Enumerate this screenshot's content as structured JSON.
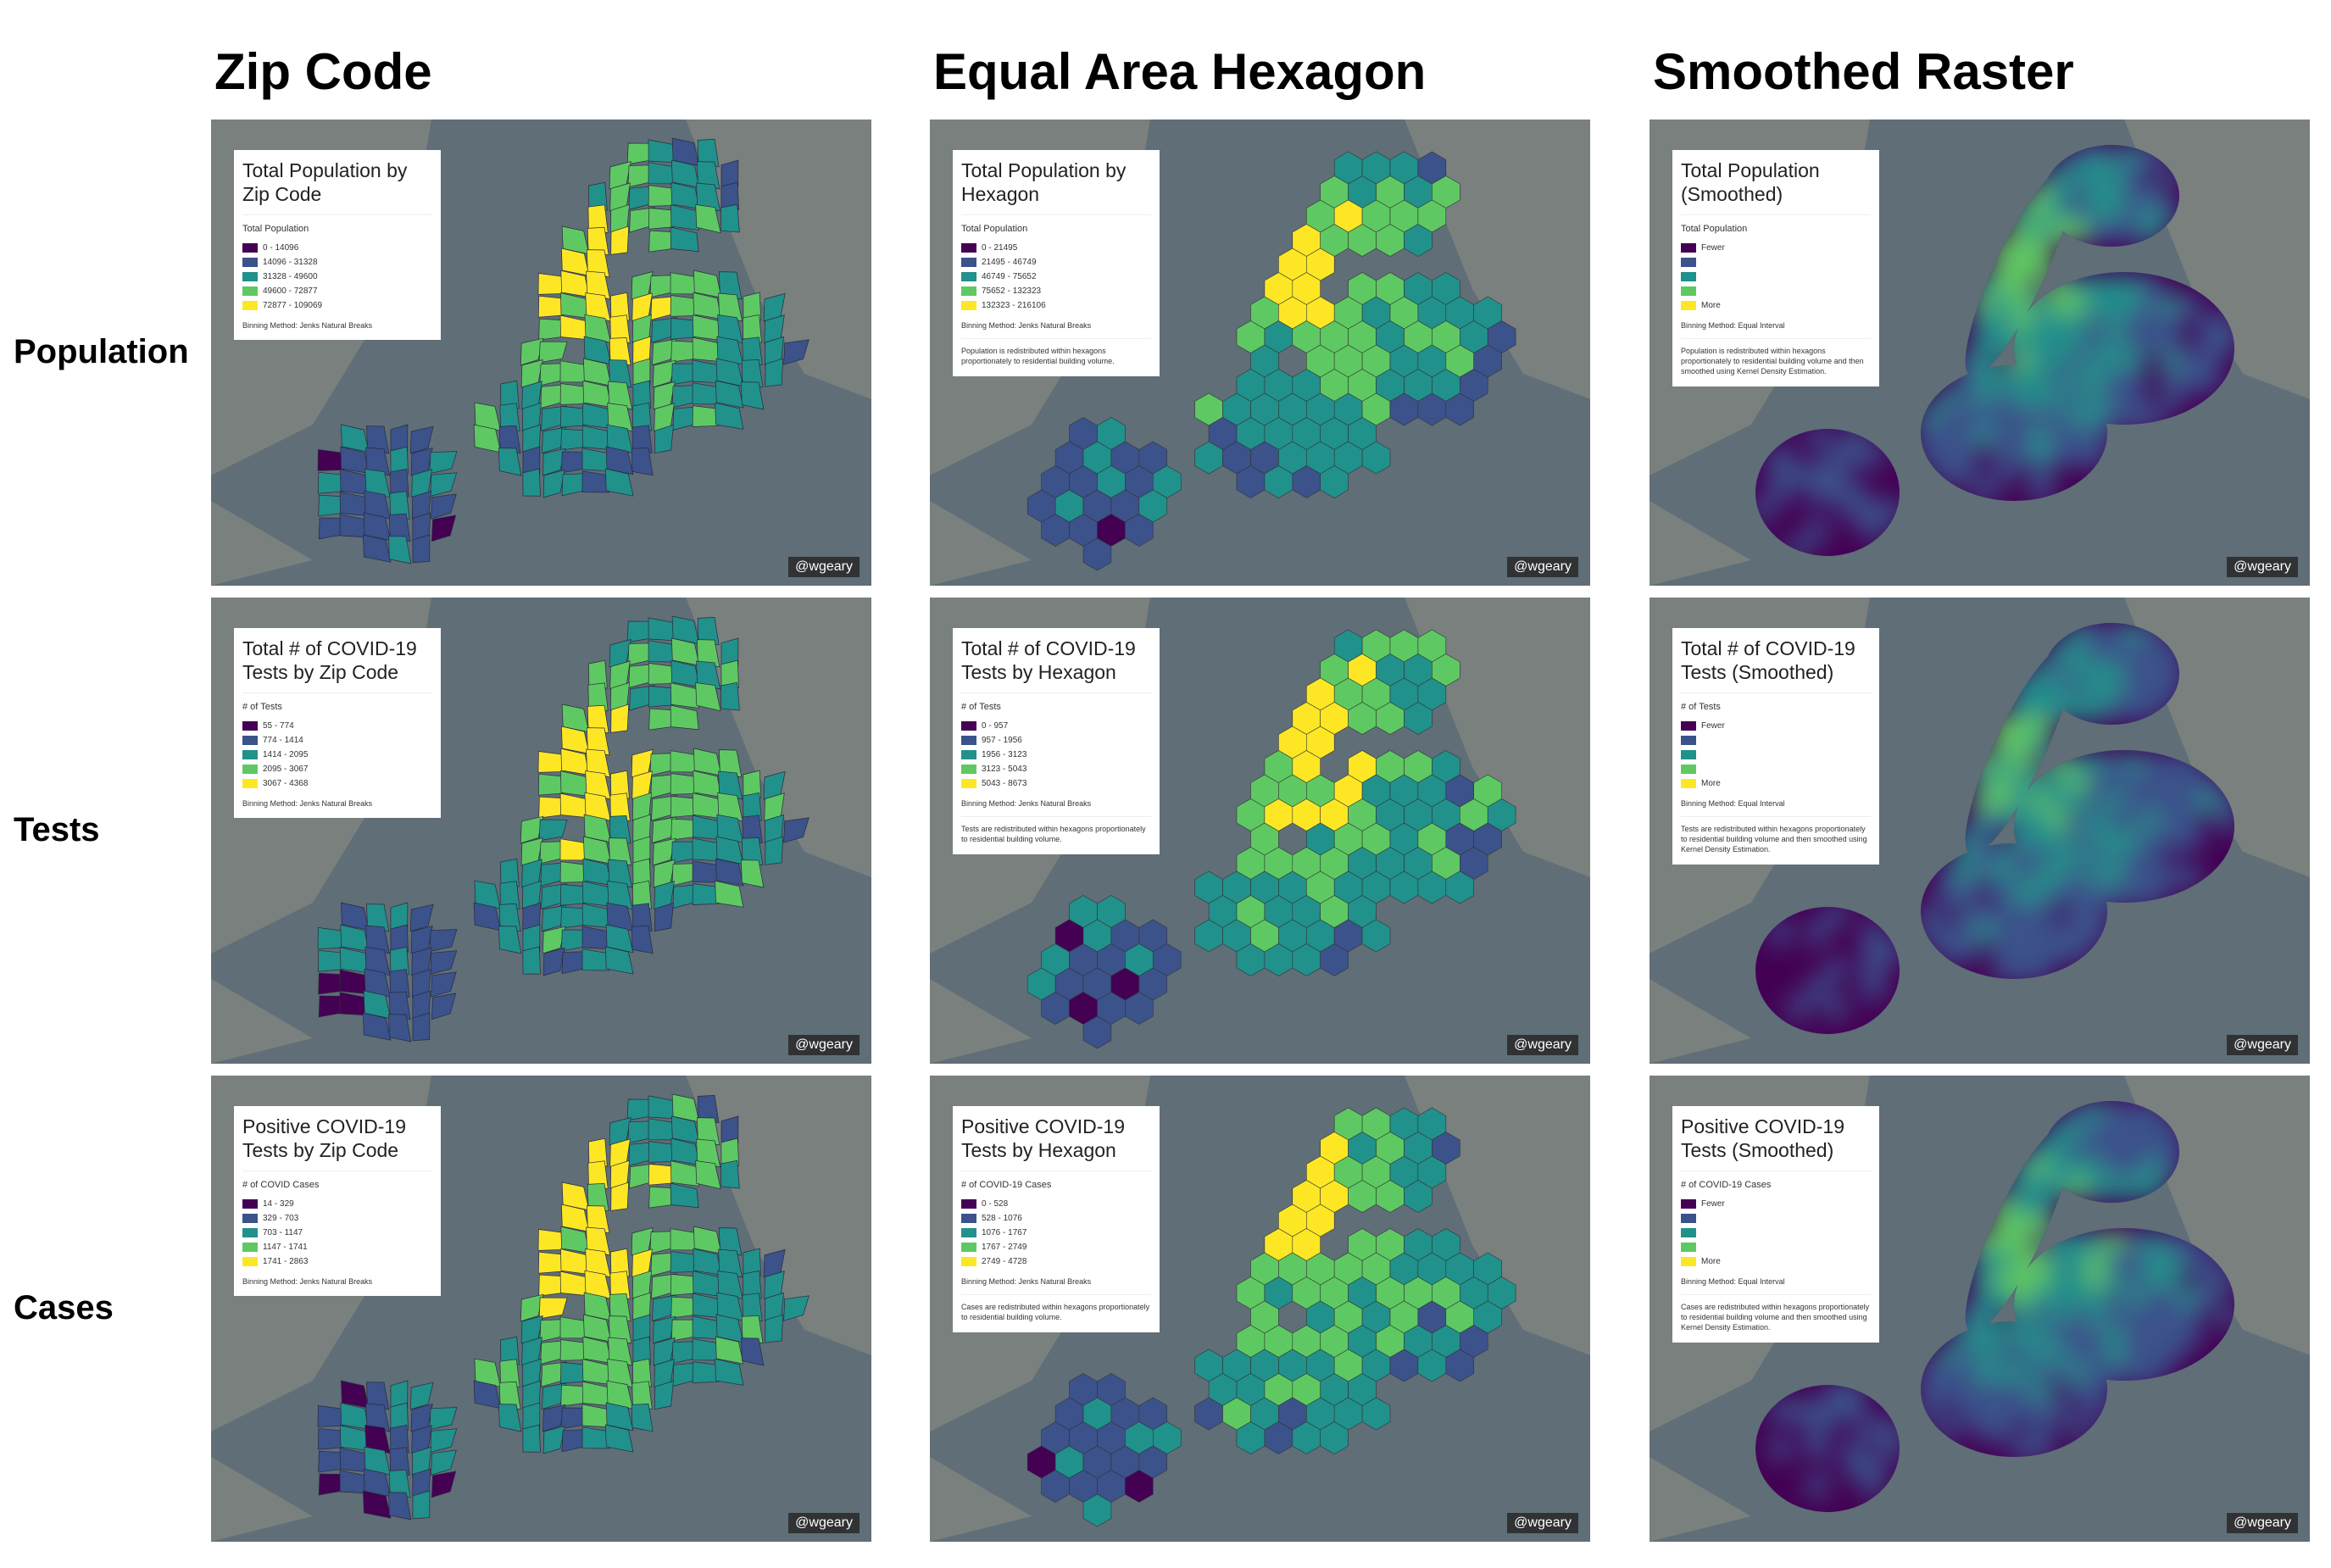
{
  "columns": [
    "Zip Code",
    "Equal Area Hexagon",
    "Smoothed Raster"
  ],
  "rows": [
    "Population",
    "Tests",
    "Cases"
  ],
  "legend_colors": [
    "#440154",
    "#3b528b",
    "#21918c",
    "#5ec962",
    "#fde725"
  ],
  "panels": [
    [
      {
        "style": "zip",
        "title": "Total Population by Zip Code",
        "legend_title": "Total Population",
        "items": [
          "0 - 14096",
          "14096 - 31328",
          "31328 - 49600",
          "49600 - 72877",
          "72877 - 109069"
        ],
        "method": "Binning Method: Jenks Natural Breaks",
        "credit": "@wgeary"
      },
      {
        "style": "hex",
        "title": "Total Population by Hexagon",
        "legend_title": "Total Population",
        "items": [
          "0 - 21495",
          "21495 - 46749",
          "46749 - 75652",
          "75652 - 132323",
          "132323 - 216106"
        ],
        "method": "Binning Method: Jenks Natural Breaks",
        "note": "Population is redistributed within hexagons proportionately to residential building volume.",
        "credit": "@wgeary"
      },
      {
        "style": "smooth",
        "title": "Total Population (Smoothed)",
        "legend_title": "Total Population",
        "items": [
          "Fewer",
          "More"
        ],
        "method": "Binning Method: Equal Interval",
        "note": "Population is redistributed within hexagons proportionately to residential building volume and then smoothed using Kernel Density Estimation.",
        "credit": "@wgeary"
      }
    ],
    [
      {
        "style": "zip",
        "title": "Total # of COVID-19 Tests by Zip Code",
        "legend_title": "# of Tests",
        "items": [
          "55 - 774",
          "774 - 1414",
          "1414 - 2095",
          "2095 - 3067",
          "3067 - 4368"
        ],
        "method": "Binning Method: Jenks Natural Breaks",
        "credit": "@wgeary"
      },
      {
        "style": "hex",
        "title": "Total # of COVID-19 Tests by Hexagon",
        "legend_title": "# of Tests",
        "items": [
          "0 - 957",
          "957 - 1956",
          "1956 - 3123",
          "3123 - 5043",
          "5043 - 8673"
        ],
        "method": "Binning Method: Jenks Natural Breaks",
        "note": "Tests are redistributed within hexagons proportionately to residential building volume.",
        "credit": "@wgeary"
      },
      {
        "style": "smooth",
        "title": "Total # of COVID-19 Tests (Smoothed)",
        "legend_title": "# of Tests",
        "items": [
          "Fewer",
          "More"
        ],
        "method": "Binning Method: Equal Interval",
        "note": "Tests are redistributed within hexagons proportionately to residential building volume and then smoothed using Kernel Density Estimation.",
        "credit": "@wgeary"
      }
    ],
    [
      {
        "style": "zip",
        "title": "Positive COVID-19 Tests by Zip Code",
        "legend_title": "# of COVID Cases",
        "items": [
          "14 - 329",
          "329 - 703",
          "703 - 1147",
          "1147 - 1741",
          "1741 - 2863"
        ],
        "method": "Binning Method: Jenks Natural Breaks",
        "credit": "@wgeary"
      },
      {
        "style": "hex",
        "title": "Positive COVID-19 Tests by Hexagon",
        "legend_title": "# of COVID-19 Cases",
        "items": [
          "0 - 528",
          "528 - 1076",
          "1076 - 1767",
          "1767 - 2749",
          "2749 - 4728"
        ],
        "method": "Binning Method: Jenks Natural Breaks",
        "note": "Cases are redistributed within hexagons proportionately to residential building volume.",
        "credit": "@wgeary"
      },
      {
        "style": "smooth",
        "title": "Positive COVID-19 Tests (Smoothed)",
        "legend_title": "# of COVID-19 Cases",
        "items": [
          "Fewer",
          "More"
        ],
        "method": "Binning Method: Equal Interval",
        "note": "Cases are redistributed within hexagons proportionately to residential building volume and then smoothed using Kernel Density Estimation.",
        "credit": "@wgeary"
      }
    ]
  ]
}
